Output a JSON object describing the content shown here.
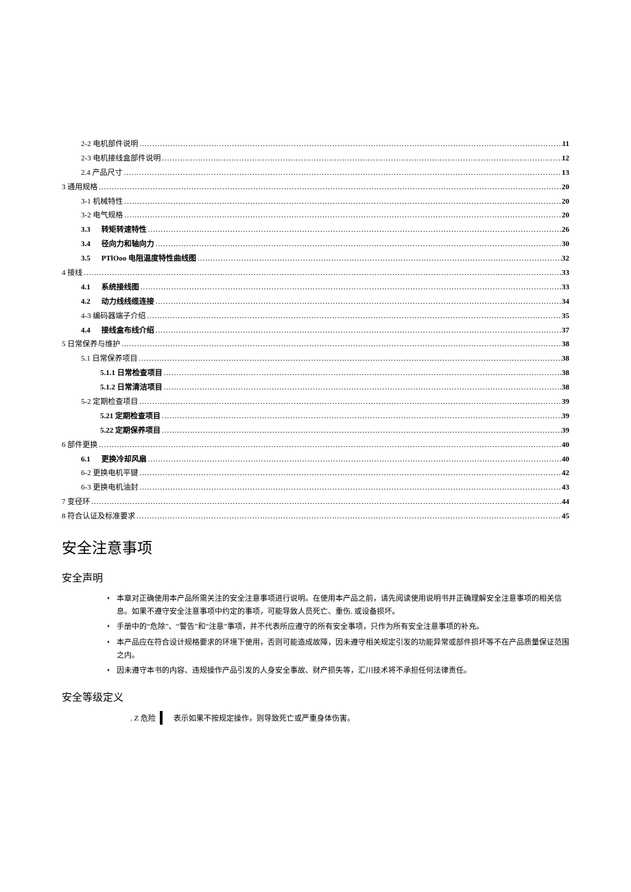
{
  "toc": [
    {
      "indent": 1,
      "num": "",
      "label": "2-2 电机部件说明",
      "page": "11",
      "bold": false
    },
    {
      "indent": 1,
      "num": "",
      "label": "2-3 电机接线盒部件说明",
      "page": "12",
      "bold": false
    },
    {
      "indent": 1,
      "num": "",
      "label": "2.4 产品尺寸",
      "page": "13",
      "bold": false
    },
    {
      "indent": 0,
      "num": "",
      "label": "3 通用规格",
      "page": "20",
      "bold": false
    },
    {
      "indent": 1,
      "num": "",
      "label": "3-1 机械特性",
      "page": "20",
      "bold": false
    },
    {
      "indent": 1,
      "num": "",
      "label": "3-2 电气规格",
      "page": "20",
      "bold": false
    },
    {
      "indent": 1,
      "num": "3.3",
      "label": "转矩转速特性",
      "page": "26",
      "bold": true
    },
    {
      "indent": 1,
      "num": "3.4",
      "label": "径向力和轴向力",
      "page": "30",
      "bold": true
    },
    {
      "indent": 1,
      "num": "3.5",
      "label": "PTlOoo 电阻温度特性曲线图",
      "page": "32",
      "bold": true
    },
    {
      "indent": 0,
      "num": "",
      "label": "4 接线",
      "page": "33",
      "bold": false
    },
    {
      "indent": 1,
      "num": "4.1",
      "label": "系统接线图",
      "page": "33",
      "bold": true
    },
    {
      "indent": 1,
      "num": "4.2",
      "label": "动力线线缆连接",
      "page": "34",
      "bold": true
    },
    {
      "indent": 1,
      "num": "",
      "label": "4-3 编码器端子介绍",
      "page": "35",
      "bold": false
    },
    {
      "indent": 1,
      "num": "4.4",
      "label": "接线盒布线介绍",
      "page": "37",
      "bold": true
    },
    {
      "indent": 0,
      "num": "",
      "label": "5 日常保养与维护",
      "page": "38",
      "bold": false
    },
    {
      "indent": 1,
      "num": "",
      "label": "5.1 日常保养项目",
      "page": "38",
      "bold": false
    },
    {
      "indent": 2,
      "num": "",
      "label": "5.1.1 日常检查项目",
      "page": "38",
      "bold": true
    },
    {
      "indent": 2,
      "num": "",
      "label": "5.1.2 日常清洁项目",
      "page": "38",
      "bold": true
    },
    {
      "indent": 1,
      "num": "",
      "label": "5-2 定期检查项目",
      "page": "39",
      "bold": false
    },
    {
      "indent": 2,
      "num": "",
      "label": "5.21 定期检查项目",
      "page": "39",
      "bold": true
    },
    {
      "indent": 2,
      "num": "",
      "label": "5.22 定期保养项目",
      "page": "39",
      "bold": true
    },
    {
      "indent": 0,
      "num": "",
      "label": "6 部件更换",
      "page": "40",
      "bold": false
    },
    {
      "indent": 1,
      "num": "6.1",
      "label": "更换冷却风扇",
      "page": "40",
      "bold": true
    },
    {
      "indent": 1,
      "num": "",
      "label": "6-2 更换电机平键",
      "page": "42",
      "bold": false
    },
    {
      "indent": 1,
      "num": "",
      "label": "6-3 更换电机油封",
      "page": "43",
      "bold": false
    },
    {
      "indent": 0,
      "num": "",
      "label": "7 变径环",
      "page": "44",
      "bold": false
    },
    {
      "indent": 0,
      "num": "",
      "label": "8 符合认证及标准要求",
      "page": "45",
      "bold": false
    }
  ],
  "safety_heading": "安全注意事项",
  "safety_statement_heading": "安全声明",
  "safety_bullets": [
    "本章对正确使用本产品所需关注的安全注意事项进行说明。在使用本产品之前，请先阅读使用说明书并正确理解安全注意事项的相关信息。如果不遵守安全注意事项中约定的事项，可能导致人员死亡、重伤. 或设备损坏。",
    "手册中的“危除”、“警告”和“注意”事项，并不代表所应遵守的所有安全事项，只作为所有安全注意事项的补充。",
    "本产品应在符合设计规格要求的环境下使用，否则可能造成故障，因未遵守相关规定引发的功能异常或部件损坏等不在产品质量保证范围之内。",
    "因未遵守本书的内容、违规操作产品引发的人身安全事故、财产损失等，汇川技术将不承担任何法律责任。"
  ],
  "safety_level_heading": "安全等级定义",
  "danger_label": ". Z 危险",
  "danger_text": "表示如果不按规定操作，则导致死亡或严重身体伤害。",
  "colors": {
    "text": "#000000",
    "background": "#ffffff"
  }
}
